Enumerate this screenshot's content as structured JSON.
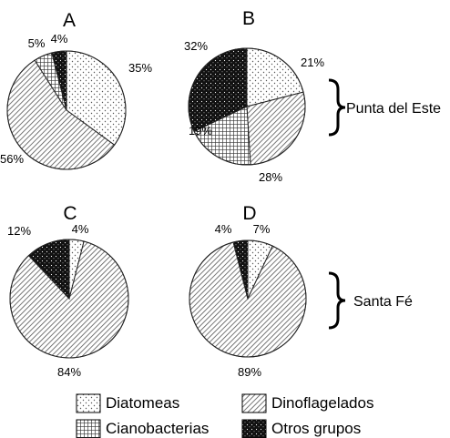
{
  "chart_data": {
    "type": "pie",
    "categories": [
      "Diatomeas",
      "Dinoflagelados",
      "Cianobacterias",
      "Otros grupos"
    ],
    "legend": {
      "placement": "bottom",
      "items": [
        {
          "label": "Diatomeas",
          "pattern": "dots"
        },
        {
          "label": "Dinoflagelados",
          "pattern": "diagonal-lines"
        },
        {
          "label": "Cianobacterias",
          "pattern": "grid"
        },
        {
          "label": "Otros grupos",
          "pattern": "black-dots"
        }
      ]
    },
    "groups": [
      {
        "label": "Punta del Este",
        "panels": [
          "A",
          "B"
        ]
      },
      {
        "label": "Santa Fé",
        "panels": [
          "C",
          "D"
        ]
      }
    ],
    "panels": [
      {
        "panel": "A",
        "values": [
          35,
          56,
          5,
          4
        ],
        "labels": [
          "35%",
          "56%",
          "5%",
          "4%"
        ]
      },
      {
        "panel": "B",
        "values": [
          21,
          28,
          19,
          32
        ],
        "labels": [
          "21%",
          "28%",
          "19%",
          "32%"
        ]
      },
      {
        "panel": "C",
        "values": [
          4,
          84,
          0,
          12
        ],
        "labels": [
          "4%",
          "84%",
          "",
          "12%"
        ]
      },
      {
        "panel": "D",
        "values": [
          7,
          89,
          0,
          4
        ],
        "labels": [
          "7%",
          "89%",
          "",
          "4%"
        ]
      }
    ]
  }
}
